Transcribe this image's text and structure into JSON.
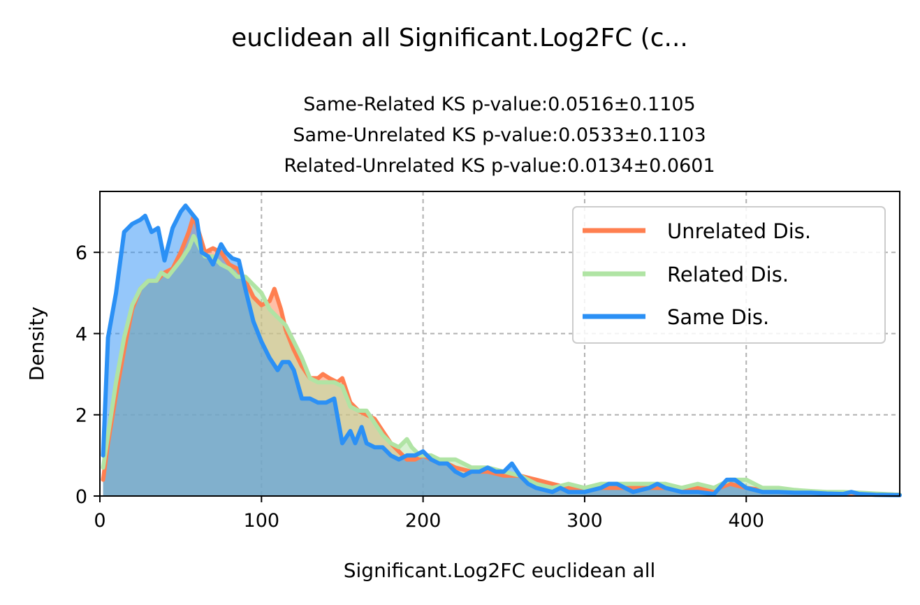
{
  "title": "euclidean all Significant.Log2FC (c...",
  "subtitle_lines": [
    "Same-Related KS p-value:0.0516±0.1105",
    "Same-Unrelated KS p-value:0.0533±0.1103",
    "Related-Unrelated KS p-value:0.0134±0.0601"
  ],
  "chart_data": {
    "type": "area",
    "xlabel": "Significant.Log2FC euclidean all",
    "ylabel": "Density",
    "xlim": [
      0,
      495
    ],
    "ylim": [
      0,
      7.5
    ],
    "xticks": [
      0,
      100,
      200,
      300,
      400
    ],
    "yticks": [
      0,
      2,
      4,
      6
    ],
    "grid": true,
    "legend_position": "top-right",
    "series": [
      {
        "name": "Unrelated Dis.",
        "color": "#ff7f50",
        "fill_alpha": 0.5,
        "points": [
          [
            2,
            0.4
          ],
          [
            5,
            1.3
          ],
          [
            10,
            2.5
          ],
          [
            15,
            3.6
          ],
          [
            20,
            4.6
          ],
          [
            25,
            5.1
          ],
          [
            30,
            5.3
          ],
          [
            35,
            5.3
          ],
          [
            40,
            5.5
          ],
          [
            45,
            5.6
          ],
          [
            50,
            6.0
          ],
          [
            55,
            6.5
          ],
          [
            58,
            6.9
          ],
          [
            62,
            6.4
          ],
          [
            65,
            6.0
          ],
          [
            70,
            6.1
          ],
          [
            75,
            6.0
          ],
          [
            80,
            5.7
          ],
          [
            85,
            5.6
          ],
          [
            90,
            5.3
          ],
          [
            95,
            4.9
          ],
          [
            100,
            4.7
          ],
          [
            105,
            4.8
          ],
          [
            108,
            5.1
          ],
          [
            112,
            4.6
          ],
          [
            115,
            4.1
          ],
          [
            120,
            3.6
          ],
          [
            125,
            3.2
          ],
          [
            130,
            2.9
          ],
          [
            135,
            2.9
          ],
          [
            138,
            3.0
          ],
          [
            142,
            2.9
          ],
          [
            147,
            2.8
          ],
          [
            150,
            2.9
          ],
          [
            155,
            2.3
          ],
          [
            160,
            2.1
          ],
          [
            165,
            2.0
          ],
          [
            170,
            1.9
          ],
          [
            175,
            1.6
          ],
          [
            180,
            1.3
          ],
          [
            185,
            1.1
          ],
          [
            190,
            0.9
          ],
          [
            195,
            0.9
          ],
          [
            200,
            1.0
          ],
          [
            205,
            0.9
          ],
          [
            210,
            0.8
          ],
          [
            215,
            0.8
          ],
          [
            220,
            0.7
          ],
          [
            230,
            0.6
          ],
          [
            240,
            0.6
          ],
          [
            250,
            0.5
          ],
          [
            260,
            0.5
          ],
          [
            270,
            0.4
          ],
          [
            280,
            0.3
          ],
          [
            290,
            0.2
          ],
          [
            300,
            0.2
          ],
          [
            310,
            0.2
          ],
          [
            320,
            0.2
          ],
          [
            330,
            0.2
          ],
          [
            340,
            0.2
          ],
          [
            350,
            0.2
          ],
          [
            360,
            0.15
          ],
          [
            370,
            0.2
          ],
          [
            380,
            0.15
          ],
          [
            390,
            0.3
          ],
          [
            400,
            0.2
          ],
          [
            410,
            0.15
          ],
          [
            420,
            0.1
          ],
          [
            430,
            0.1
          ],
          [
            440,
            0.1
          ],
          [
            450,
            0.08
          ],
          [
            460,
            0.08
          ],
          [
            470,
            0.05
          ],
          [
            480,
            0.05
          ],
          [
            495,
            0.03
          ]
        ]
      },
      {
        "name": "Related Dis.",
        "color": "#b0e4a4",
        "fill_alpha": 0.5,
        "points": [
          [
            2,
            0.7
          ],
          [
            5,
            1.5
          ],
          [
            10,
            2.8
          ],
          [
            15,
            3.9
          ],
          [
            20,
            4.7
          ],
          [
            25,
            5.1
          ],
          [
            30,
            5.3
          ],
          [
            35,
            5.3
          ],
          [
            38,
            5.5
          ],
          [
            42,
            5.4
          ],
          [
            46,
            5.6
          ],
          [
            50,
            5.8
          ],
          [
            55,
            6.1
          ],
          [
            58,
            6.4
          ],
          [
            62,
            6.1
          ],
          [
            65,
            5.9
          ],
          [
            70,
            5.9
          ],
          [
            75,
            5.7
          ],
          [
            80,
            5.6
          ],
          [
            85,
            5.4
          ],
          [
            90,
            5.4
          ],
          [
            95,
            5.2
          ],
          [
            100,
            5.0
          ],
          [
            105,
            4.6
          ],
          [
            110,
            4.4
          ],
          [
            115,
            4.2
          ],
          [
            120,
            3.8
          ],
          [
            125,
            3.4
          ],
          [
            130,
            2.9
          ],
          [
            135,
            2.8
          ],
          [
            140,
            2.8
          ],
          [
            145,
            2.8
          ],
          [
            150,
            2.7
          ],
          [
            155,
            2.2
          ],
          [
            160,
            2.1
          ],
          [
            165,
            2.1
          ],
          [
            170,
            1.8
          ],
          [
            175,
            1.5
          ],
          [
            180,
            1.3
          ],
          [
            185,
            1.2
          ],
          [
            190,
            1.4
          ],
          [
            193,
            1.2
          ],
          [
            198,
            1.0
          ],
          [
            205,
            1.0
          ],
          [
            210,
            0.9
          ],
          [
            215,
            0.9
          ],
          [
            220,
            0.9
          ],
          [
            230,
            0.7
          ],
          [
            240,
            0.7
          ],
          [
            250,
            0.6
          ],
          [
            260,
            0.5
          ],
          [
            270,
            0.3
          ],
          [
            280,
            0.2
          ],
          [
            290,
            0.3
          ],
          [
            300,
            0.2
          ],
          [
            310,
            0.3
          ],
          [
            320,
            0.3
          ],
          [
            330,
            0.3
          ],
          [
            340,
            0.3
          ],
          [
            350,
            0.3
          ],
          [
            360,
            0.2
          ],
          [
            370,
            0.3
          ],
          [
            380,
            0.2
          ],
          [
            390,
            0.4
          ],
          [
            400,
            0.4
          ],
          [
            410,
            0.2
          ],
          [
            420,
            0.2
          ],
          [
            430,
            0.15
          ],
          [
            440,
            0.12
          ],
          [
            450,
            0.1
          ],
          [
            460,
            0.1
          ],
          [
            470,
            0.08
          ],
          [
            480,
            0.06
          ],
          [
            495,
            0.03
          ]
        ]
      },
      {
        "name": "Same Dis.",
        "color": "#2b90f5",
        "fill_alpha": 0.5,
        "points": [
          [
            2,
            1.0
          ],
          [
            5,
            3.9
          ],
          [
            10,
            5.0
          ],
          [
            15,
            6.5
          ],
          [
            20,
            6.7
          ],
          [
            25,
            6.8
          ],
          [
            28,
            6.9
          ],
          [
            32,
            6.5
          ],
          [
            36,
            6.6
          ],
          [
            40,
            5.8
          ],
          [
            45,
            6.6
          ],
          [
            50,
            7.0
          ],
          [
            53,
            7.15
          ],
          [
            57,
            6.95
          ],
          [
            60,
            6.8
          ],
          [
            63,
            6.0
          ],
          [
            67,
            5.9
          ],
          [
            70,
            5.7
          ],
          [
            75,
            6.2
          ],
          [
            78,
            6.0
          ],
          [
            82,
            5.85
          ],
          [
            86,
            5.8
          ],
          [
            90,
            5.1
          ],
          [
            95,
            4.3
          ],
          [
            100,
            3.8
          ],
          [
            105,
            3.4
          ],
          [
            110,
            3.1
          ],
          [
            113,
            3.3
          ],
          [
            117,
            3.3
          ],
          [
            120,
            3.1
          ],
          [
            125,
            2.4
          ],
          [
            130,
            2.4
          ],
          [
            135,
            2.3
          ],
          [
            140,
            2.3
          ],
          [
            145,
            2.4
          ],
          [
            150,
            1.3
          ],
          [
            155,
            1.6
          ],
          [
            158,
            1.3
          ],
          [
            162,
            1.7
          ],
          [
            165,
            1.3
          ],
          [
            170,
            1.2
          ],
          [
            175,
            1.2
          ],
          [
            180,
            1.0
          ],
          [
            185,
            0.9
          ],
          [
            190,
            1.0
          ],
          [
            195,
            1.0
          ],
          [
            200,
            1.1
          ],
          [
            205,
            0.9
          ],
          [
            210,
            0.8
          ],
          [
            215,
            0.8
          ],
          [
            220,
            0.6
          ],
          [
            225,
            0.5
          ],
          [
            230,
            0.6
          ],
          [
            235,
            0.6
          ],
          [
            240,
            0.7
          ],
          [
            245,
            0.6
          ],
          [
            250,
            0.6
          ],
          [
            255,
            0.8
          ],
          [
            260,
            0.5
          ],
          [
            265,
            0.3
          ],
          [
            270,
            0.2
          ],
          [
            280,
            0.1
          ],
          [
            285,
            0.2
          ],
          [
            290,
            0.1
          ],
          [
            300,
            0.1
          ],
          [
            310,
            0.2
          ],
          [
            315,
            0.3
          ],
          [
            320,
            0.3
          ],
          [
            325,
            0.2
          ],
          [
            330,
            0.1
          ],
          [
            340,
            0.2
          ],
          [
            345,
            0.3
          ],
          [
            350,
            0.2
          ],
          [
            360,
            0.1
          ],
          [
            370,
            0.1
          ],
          [
            380,
            0.05
          ],
          [
            388,
            0.4
          ],
          [
            393,
            0.4
          ],
          [
            400,
            0.2
          ],
          [
            410,
            0.1
          ],
          [
            420,
            0.1
          ],
          [
            430,
            0.08
          ],
          [
            440,
            0.08
          ],
          [
            450,
            0.06
          ],
          [
            460,
            0.05
          ],
          [
            465,
            0.1
          ],
          [
            470,
            0.05
          ],
          [
            480,
            0.03
          ],
          [
            495,
            0.02
          ]
        ]
      }
    ]
  }
}
